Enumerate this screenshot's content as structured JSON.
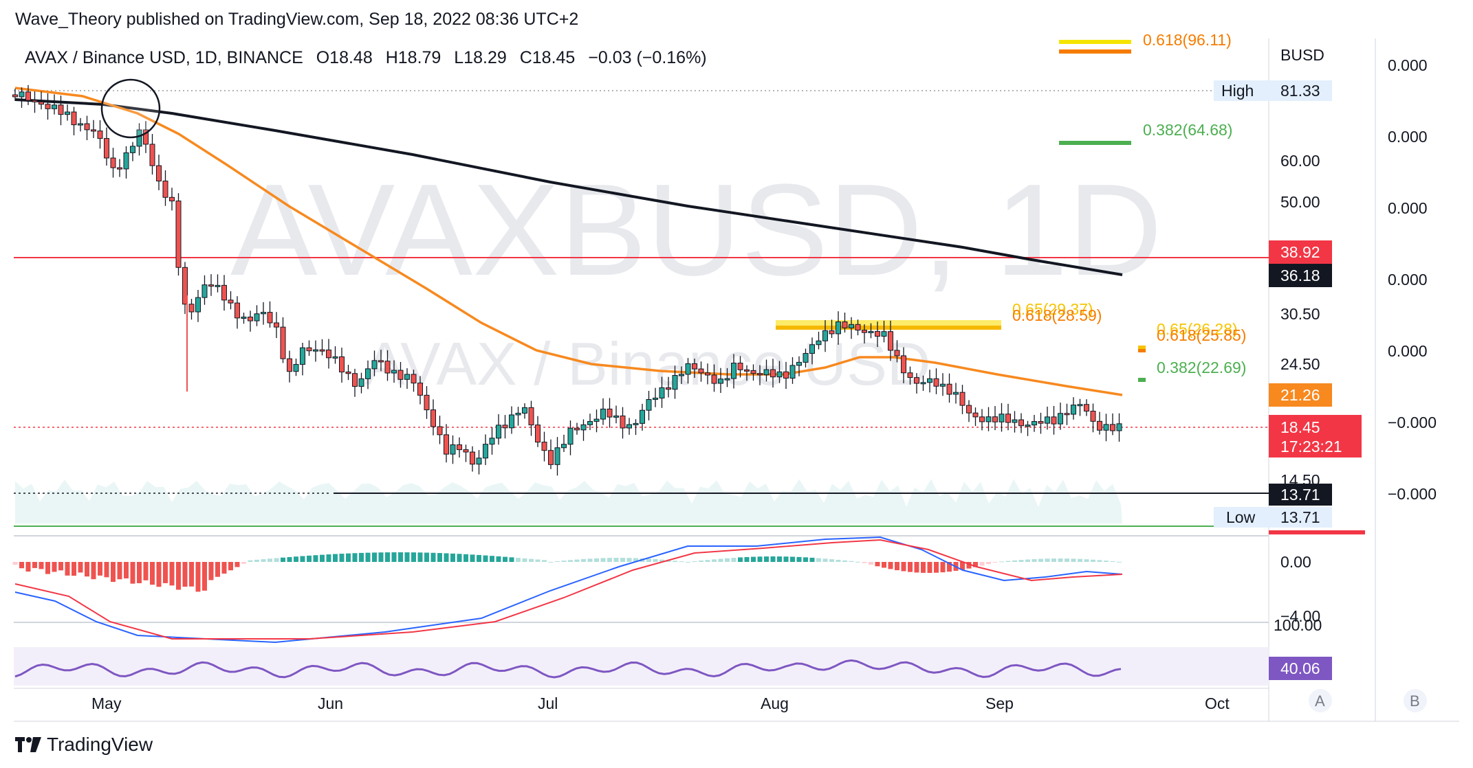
{
  "publisher": "Wave_Theory published on TradingView.com, Sep 18, 2022 08:36 UTC+2",
  "watermark": {
    "big": "AVAXBUSD, 1D",
    "small": "AVAX / Binance USD"
  },
  "legend": {
    "symbol": "AVAX / Binance USD, 1D, BINANCE",
    "open": "O18.48",
    "high": "H18.79",
    "low": "L18.29",
    "close": "C18.45",
    "change": "−0.03 (−0.16%)"
  },
  "price_axis": {
    "currency": "BUSD",
    "ticks": [
      "60.00",
      "50.00",
      "30.50",
      "24.50",
      "14.50"
    ],
    "high_label": "High",
    "high_value": "81.33",
    "low_label": "Low",
    "low_value": "13.71",
    "resistance_value": "38.92",
    "ma200_value": "36.18",
    "ma50_value": "21.26",
    "last_price": "18.45",
    "countdown": "17:23:21",
    "support_value": "13.71"
  },
  "right_scale": {
    "ticks": [
      "0.000",
      "0.000",
      "0.000",
      "0.000",
      "0.000",
      "−0.000",
      "−0.000"
    ]
  },
  "macd_axis": {
    "ticks": [
      "0.00",
      "−4.00"
    ]
  },
  "rsi_axis": {
    "tick": "100.00",
    "value": "40.06"
  },
  "time_axis": {
    "labels": [
      "May",
      "Jun",
      "Jul",
      "Aug",
      "Sep",
      "Oct"
    ]
  },
  "fib_labels": {
    "top_0618": "0.618(96.11)",
    "top_0382": "0.382(64.68)",
    "mid_065": "0.65(29.37)",
    "mid_0618": "0.618(28.59)",
    "right_065": "0.65(26.28)",
    "right_0618": "0.618(25.85)",
    "right_0382": "0.382(22.69)"
  },
  "buttons": {
    "a": "A",
    "b": "B"
  },
  "footer": "TradingView",
  "colors": {
    "up": "#26a69a",
    "down": "#ef5350",
    "ma50": "#f7891f",
    "ma200": "#131722",
    "resistance": "#f23645",
    "support": "#4caf50",
    "macd": "#2962ff",
    "signal": "#f23645",
    "rsi": "#7e57c2"
  },
  "chart_data": {
    "type": "candlestick",
    "symbol": "AVAXBUSD",
    "interval": "1D",
    "x": [
      "May",
      "Jun",
      "Jul",
      "Aug",
      "Sep",
      "Oct"
    ],
    "series": [
      {
        "name": "AVAX / Binance USD",
        "last": 18.45,
        "high": 81.33,
        "low": 13.71
      }
    ],
    "levels": {
      "resistance": 38.92,
      "support": 13.71,
      "ma200_last": 36.18,
      "ma50_last": 21.26
    },
    "fibonacci": [
      96.11,
      64.68,
      29.37,
      28.59,
      26.28,
      25.85,
      22.69
    ],
    "rsi": 40.06
  }
}
